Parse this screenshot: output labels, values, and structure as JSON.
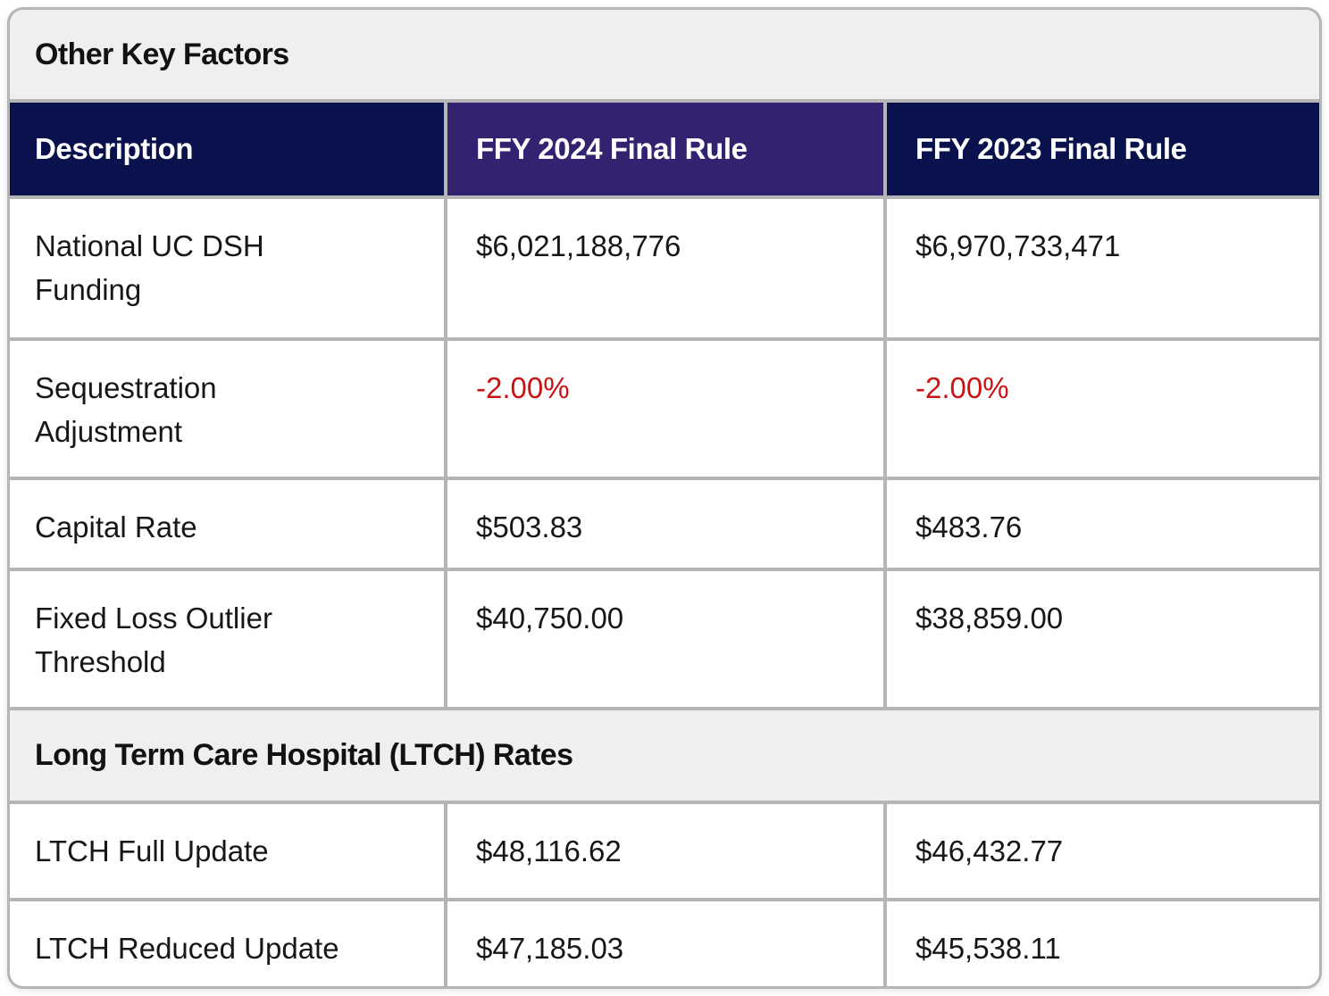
{
  "colors": {
    "section_band_bg": "#efefef",
    "header_navy_bg": "#0a124d",
    "header_purple_bg": "#332270",
    "grid_line_gray": "#b5b5b5",
    "negative_value_red": "#c81414",
    "body_text": "#171717",
    "header_text": "#ffffff"
  },
  "table": {
    "section1_title": "Other Key Factors",
    "columns": {
      "description": "Description",
      "ffy2024": "FFY 2024 Final Rule",
      "ffy2023": "FFY 2023 Final Rule"
    },
    "rows": [
      {
        "label": "National UC DSH Funding",
        "ffy2024": "$6,021,188,776",
        "ffy2023": "$6,970,733,471",
        "negative": false
      },
      {
        "label": "Sequestration Adjustment",
        "ffy2024": "-2.00%",
        "ffy2023": "-2.00%",
        "negative": true
      },
      {
        "label": "Capital Rate",
        "ffy2024": "$503.83",
        "ffy2023": "$483.76",
        "negative": false
      },
      {
        "label": "Fixed Loss Outlier Threshold",
        "ffy2024": "$40,750.00",
        "ffy2023": "$38,859.00",
        "negative": false
      }
    ],
    "section2_title": "Long Term Care Hospital (LTCH) Rates",
    "rows2": [
      {
        "label": "LTCH Full Update",
        "ffy2024": "$48,116.62",
        "ffy2023": "$46,432.77",
        "negative": false
      },
      {
        "label": "LTCH Reduced Update",
        "ffy2024": "$47,185.03",
        "ffy2023": "$45,538.11",
        "negative": false
      }
    ]
  }
}
